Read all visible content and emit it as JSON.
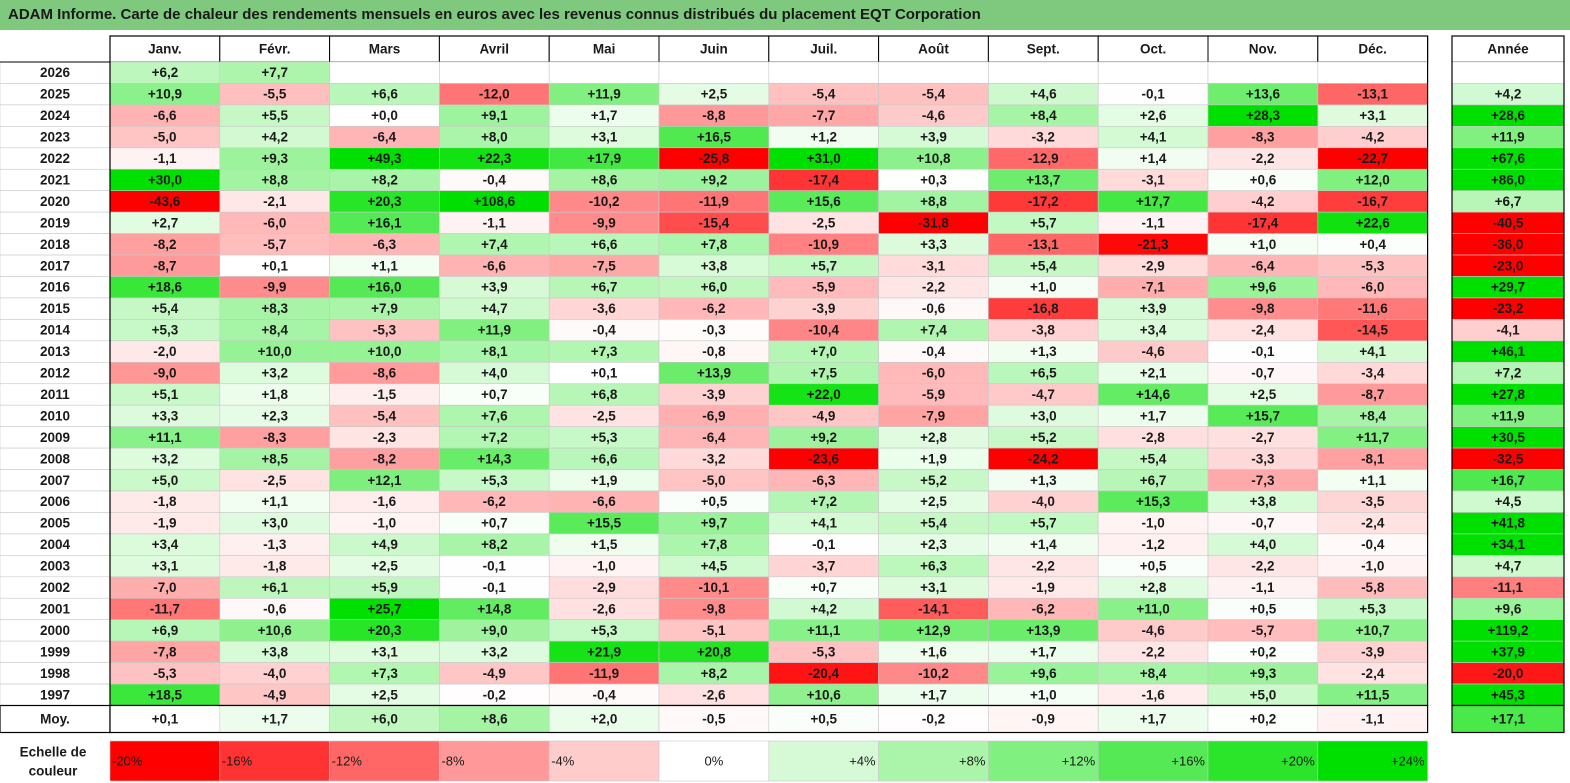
{
  "title": "ADAM Informe. Carte de chaleur des rendements mensuels en euros avec les revenus connus distribués du placement EQT Corporation",
  "colors": {
    "title_bg": "#7fc97f",
    "negative_max": "#ff0000",
    "positive_max": "#00e000",
    "neutral": "#ffffff",
    "grid": "#c8c8c8"
  },
  "chart_data": {
    "type": "heatmap",
    "title": "ADAM Informe. Carte de chaleur des rendements mensuels en euros avec les revenus connus distribués du placement EQT Corporation",
    "months": [
      "Janv.",
      "Févr.",
      "Mars",
      "Avril",
      "Mai",
      "Juin",
      "Juil.",
      "Août",
      "Sept.",
      "Oct.",
      "Nov.",
      "Déc."
    ],
    "year_header": "Année",
    "rows": [
      {
        "year": "2026",
        "values": [
          "+6,2",
          "+7,7",
          "",
          "",
          "",
          "",
          "",
          "",
          "",
          "",
          "",
          ""
        ],
        "annual": ""
      },
      {
        "year": "2025",
        "values": [
          "+10,9",
          "-5,5",
          "+6,6",
          "-12,0",
          "+11,9",
          "+2,5",
          "-5,4",
          "-5,4",
          "+4,6",
          "-0,1",
          "+13,6",
          "-13,1"
        ],
        "annual": "+4,2"
      },
      {
        "year": "2024",
        "values": [
          "-6,6",
          "+5,5",
          "+0,0",
          "+9,1",
          "+1,7",
          "-8,8",
          "-7,7",
          "-4,6",
          "+8,4",
          "+2,6",
          "+28,3",
          "+3,1"
        ],
        "annual": "+28,6"
      },
      {
        "year": "2023",
        "values": [
          "-5,0",
          "+4,2",
          "-6,4",
          "+8,0",
          "+3,1",
          "+16,5",
          "+1,2",
          "+3,9",
          "-3,2",
          "+4,1",
          "-8,3",
          "-4,2"
        ],
        "annual": "+11,9"
      },
      {
        "year": "2022",
        "values": [
          "-1,1",
          "+9,3",
          "+49,3",
          "+22,3",
          "+17,9",
          "-25,8",
          "+31,0",
          "+10,8",
          "-12,9",
          "+1,4",
          "-2,2",
          "-22,7"
        ],
        "annual": "+67,6"
      },
      {
        "year": "2021",
        "values": [
          "+30,0",
          "+8,8",
          "+8,2",
          "-0,4",
          "+8,6",
          "+9,2",
          "-17,4",
          "+0,3",
          "+13,7",
          "-3,1",
          "+0,6",
          "+12,0"
        ],
        "annual": "+86,0"
      },
      {
        "year": "2020",
        "values": [
          "-43,6",
          "-2,1",
          "+20,3",
          "+108,6",
          "-10,2",
          "-11,9",
          "+15,6",
          "+8,8",
          "-17,2",
          "+17,7",
          "-4,2",
          "-16,7"
        ],
        "annual": "+6,7"
      },
      {
        "year": "2019",
        "values": [
          "+2,7",
          "-6,0",
          "+16,1",
          "-1,1",
          "-9,9",
          "-15,4",
          "-2,5",
          "-31,8",
          "+5,7",
          "-1,1",
          "-17,4",
          "+22,6"
        ],
        "annual": "-40,5"
      },
      {
        "year": "2018",
        "values": [
          "-8,2",
          "-5,7",
          "-6,3",
          "+7,4",
          "+6,6",
          "+7,8",
          "-10,9",
          "+3,3",
          "-13,1",
          "-21,3",
          "+1,0",
          "+0,4"
        ],
        "annual": "-36,0"
      },
      {
        "year": "2017",
        "values": [
          "-8,7",
          "+0,1",
          "+1,1",
          "-6,6",
          "-7,5",
          "+3,8",
          "+5,7",
          "-3,1",
          "+5,4",
          "-2,9",
          "-6,4",
          "-5,3"
        ],
        "annual": "-23,0"
      },
      {
        "year": "2016",
        "values": [
          "+18,6",
          "-9,9",
          "+16,0",
          "+3,9",
          "+6,7",
          "+6,0",
          "-5,9",
          "-2,2",
          "+1,0",
          "-7,1",
          "+9,6",
          "-6,0"
        ],
        "annual": "+29,7"
      },
      {
        "year": "2015",
        "values": [
          "+5,4",
          "+8,3",
          "+7,9",
          "+4,7",
          "-3,6",
          "-6,2",
          "-3,9",
          "-0,6",
          "-16,8",
          "+3,9",
          "-9,8",
          "-11,6"
        ],
        "annual": "-23,2"
      },
      {
        "year": "2014",
        "values": [
          "+5,3",
          "+8,4",
          "-5,3",
          "+11,9",
          "-0,4",
          "-0,3",
          "-10,4",
          "+7,4",
          "-3,8",
          "+3,4",
          "-2,4",
          "-14,5"
        ],
        "annual": "-4,1"
      },
      {
        "year": "2013",
        "values": [
          "-2,0",
          "+10,0",
          "+10,0",
          "+8,1",
          "+7,3",
          "-0,8",
          "+7,0",
          "-0,4",
          "+1,3",
          "-4,6",
          "-0,1",
          "+4,1"
        ],
        "annual": "+46,1"
      },
      {
        "year": "2012",
        "values": [
          "-9,0",
          "+3,2",
          "-8,6",
          "+4,0",
          "+0,1",
          "+13,9",
          "+7,5",
          "-6,0",
          "+6,5",
          "+2,1",
          "-0,7",
          "-3,4"
        ],
        "annual": "+7,2"
      },
      {
        "year": "2011",
        "values": [
          "+5,1",
          "+1,8",
          "-1,5",
          "+0,7",
          "+6,8",
          "-3,9",
          "+22,0",
          "-5,9",
          "-4,7",
          "+14,6",
          "+2,5",
          "-8,7"
        ],
        "annual": "+27,8"
      },
      {
        "year": "2010",
        "values": [
          "+3,3",
          "+2,3",
          "-5,4",
          "+7,6",
          "-2,5",
          "-6,9",
          "-4,9",
          "-7,9",
          "+3,0",
          "+1,7",
          "+15,7",
          "+8,4"
        ],
        "annual": "+11,9"
      },
      {
        "year": "2009",
        "values": [
          "+11,1",
          "-8,3",
          "-2,3",
          "+7,2",
          "+5,3",
          "-6,4",
          "+9,2",
          "+2,8",
          "+5,2",
          "-2,8",
          "-2,7",
          "+11,7"
        ],
        "annual": "+30,5"
      },
      {
        "year": "2008",
        "values": [
          "+3,2",
          "+8,5",
          "-8,2",
          "+14,3",
          "+6,6",
          "-3,2",
          "-23,6",
          "+1,9",
          "-24,2",
          "+5,4",
          "-3,3",
          "-8,1"
        ],
        "annual": "-32,5"
      },
      {
        "year": "2007",
        "values": [
          "+5,0",
          "-2,5",
          "+12,1",
          "+5,3",
          "+1,9",
          "-5,0",
          "-6,3",
          "+5,2",
          "+1,3",
          "+6,7",
          "-7,3",
          "+1,1"
        ],
        "annual": "+16,7"
      },
      {
        "year": "2006",
        "values": [
          "-1,8",
          "+1,1",
          "-1,6",
          "-6,2",
          "-6,6",
          "+0,5",
          "+7,2",
          "+2,5",
          "-4,0",
          "+15,3",
          "+3,8",
          "-3,5"
        ],
        "annual": "+4,5"
      },
      {
        "year": "2005",
        "values": [
          "-1,9",
          "+3,0",
          "-1,0",
          "+0,7",
          "+15,5",
          "+9,7",
          "+4,1",
          "+5,4",
          "+5,7",
          "-1,0",
          "-0,7",
          "-2,4"
        ],
        "annual": "+41,8"
      },
      {
        "year": "2004",
        "values": [
          "+3,4",
          "-1,3",
          "+4,9",
          "+8,2",
          "+1,5",
          "+7,8",
          "-0,1",
          "+2,3",
          "+1,4",
          "-1,2",
          "+4,0",
          "-0,4"
        ],
        "annual": "+34,1"
      },
      {
        "year": "2003",
        "values": [
          "+3,1",
          "-1,8",
          "+2,5",
          "-0,1",
          "-1,0",
          "+4,5",
          "-3,7",
          "+6,3",
          "-2,2",
          "+0,5",
          "-2,2",
          "-1,0"
        ],
        "annual": "+4,7"
      },
      {
        "year": "2002",
        "values": [
          "-7,0",
          "+6,1",
          "+5,9",
          "-0,1",
          "-2,9",
          "-10,1",
          "+0,7",
          "+3,1",
          "-1,9",
          "+2,8",
          "-1,1",
          "-5,8"
        ],
        "annual": "-11,1"
      },
      {
        "year": "2001",
        "values": [
          "-11,7",
          "-0,6",
          "+25,7",
          "+14,8",
          "-2,6",
          "-9,8",
          "+4,2",
          "-14,1",
          "-6,2",
          "+11,0",
          "+0,5",
          "+5,3"
        ],
        "annual": "+9,6"
      },
      {
        "year": "2000",
        "values": [
          "+6,9",
          "+10,6",
          "+20,3",
          "+9,0",
          "+5,3",
          "-5,1",
          "+11,1",
          "+12,9",
          "+13,9",
          "-4,6",
          "-5,7",
          "+10,7"
        ],
        "annual": "+119,2"
      },
      {
        "year": "1999",
        "values": [
          "-7,8",
          "+3,8",
          "+3,1",
          "+3,2",
          "+21,9",
          "+20,8",
          "-5,3",
          "+1,6",
          "+1,7",
          "-2,2",
          "+0,2",
          "-3,9"
        ],
        "annual": "+37,9"
      },
      {
        "year": "1998",
        "values": [
          "-5,3",
          "-4,0",
          "+7,3",
          "-4,9",
          "-11,9",
          "+8,2",
          "-20,4",
          "-10,2",
          "+9,6",
          "+8,4",
          "+9,3",
          "-2,4"
        ],
        "annual": "-20,0"
      },
      {
        "year": "1997",
        "values": [
          "+18,5",
          "-4,9",
          "+2,5",
          "-0,2",
          "-0,4",
          "-2,6",
          "+10,6",
          "+1,7",
          "+1,0",
          "-1,6",
          "+5,0",
          "+11,5"
        ],
        "annual": "+45,3"
      }
    ],
    "average": {
      "label": "Moy.",
      "values": [
        "+0,1",
        "+1,7",
        "+6,0",
        "+8,6",
        "+2,0",
        "-0,5",
        "+0,5",
        "-0,2",
        "-0,9",
        "+1,7",
        "+0,2",
        "-1,1"
      ],
      "annual": "+17,1"
    },
    "color_scale": {
      "label_line1": "Echelle de",
      "label_line2": "couleur",
      "stops": [
        "-20%",
        "-16%",
        "-12%",
        "-8%",
        "-4%",
        "0%",
        "+4%",
        "+8%",
        "+12%",
        "+16%",
        "+20%",
        "+24%"
      ],
      "stop_values": [
        -20,
        -16,
        -12,
        -8,
        -4,
        0,
        4,
        8,
        12,
        16,
        20,
        24
      ]
    }
  }
}
